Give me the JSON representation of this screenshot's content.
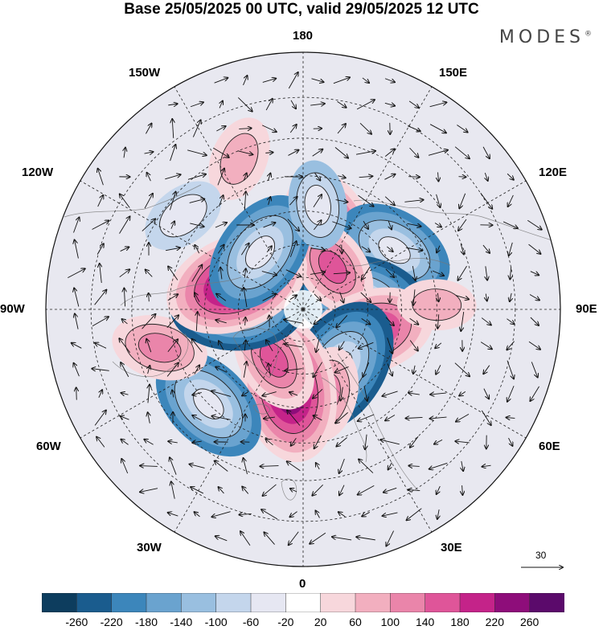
{
  "title": "Base 25/05/2025 00 UTC, valid 29/05/2025 12 UTC",
  "brand": "MODES",
  "brand_mark": "®",
  "longitude_labels": {
    "top": "180",
    "top_left": "150W",
    "top_right": "150E",
    "upper_left": "120W",
    "upper_right": "120E",
    "left": "90W",
    "right": "90E",
    "lower_left": "60W",
    "lower_right": "60E",
    "bottom_left": "30W",
    "bottom_right": "30E",
    "bottom": "0"
  },
  "wind_reference": {
    "label": "30"
  },
  "colorbar": {
    "labels": [
      "-260",
      "-220",
      "-180",
      "-140",
      "-100",
      "-60",
      "-20",
      "20",
      "60",
      "100",
      "140",
      "180",
      "220",
      "260"
    ],
    "colors": [
      "#0d3d5e",
      "#1a5c8e",
      "#3c86bb",
      "#6aa3cf",
      "#99bfe0",
      "#c4d6ec",
      "#e6e7f2",
      "#ffffff",
      "#f7d7dc",
      "#f2afbf",
      "#ea85aa",
      "#df5599",
      "#c42389",
      "#8e0d7a",
      "#5b0a6b"
    ]
  },
  "chart_data": {
    "type": "polar-stereographic-map",
    "projection": "north polar stereographic",
    "field": "shaded anomaly with wind vectors",
    "longitude_ticks": [
      "180",
      "150E",
      "120E",
      "90E",
      "60E",
      "30E",
      "0",
      "30W",
      "60W",
      "90W",
      "120W",
      "150W"
    ],
    "color_levels": [
      -260,
      -220,
      -180,
      -140,
      -100,
      -60,
      -20,
      20,
      60,
      100,
      140,
      180,
      220,
      260
    ],
    "wind_reference_value": 30,
    "anomaly_centers": [
      {
        "lon": 160,
        "lat": 66,
        "value": 230
      },
      {
        "lon": 123,
        "lat": 57,
        "value": -190
      },
      {
        "lon": 100,
        "lat": 72,
        "value": -230
      },
      {
        "lon": 145,
        "lat": 74,
        "value": 140
      },
      {
        "lon": 72,
        "lat": 68,
        "value": 210
      },
      {
        "lon": 32,
        "lat": 69,
        "value": -250
      },
      {
        "lon": 15,
        "lat": 63,
        "value": 120
      },
      {
        "lon": -10,
        "lat": 65,
        "value": 260
      },
      {
        "lon": -30,
        "lat": 72,
        "value": 150
      },
      {
        "lon": -45,
        "lat": 50,
        "value": -200
      },
      {
        "lon": -75,
        "lat": 46,
        "value": 120
      },
      {
        "lon": -92,
        "lat": 70,
        "value": -230
      },
      {
        "lon": -112,
        "lat": 68,
        "value": 260
      },
      {
        "lon": -143,
        "lat": 68,
        "value": -210
      },
      {
        "lon": -157,
        "lat": 42,
        "value": 90
      },
      {
        "lon": 172,
        "lat": 58,
        "value": -100
      },
      {
        "lon": -128,
        "lat": 45,
        "value": -90
      },
      {
        "lon": 92,
        "lat": 50,
        "value": 70
      }
    ]
  }
}
